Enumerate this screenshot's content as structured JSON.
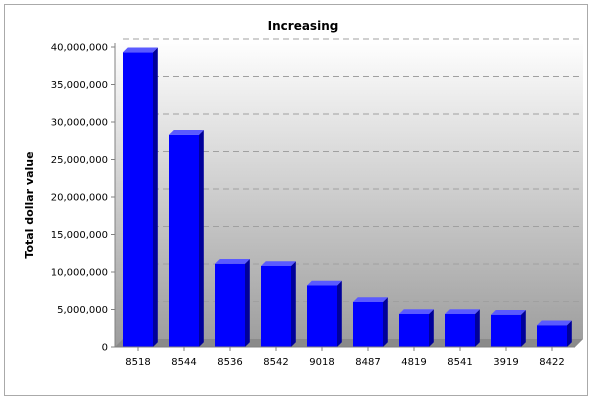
{
  "chart_data": {
    "type": "bar",
    "title": "Increasing",
    "xlabel": "",
    "ylabel": "Total dollar value",
    "categories": [
      "8518",
      "8544",
      "8536",
      "8542",
      "9018",
      "8487",
      "4819",
      "8541",
      "3919",
      "8422"
    ],
    "values": [
      39300000,
      28300000,
      11100000,
      10800000,
      8200000,
      6000000,
      4400000,
      4400000,
      4300000,
      2900000
    ],
    "ylim": [
      0,
      40000000
    ],
    "yticks": [
      0,
      5000000,
      10000000,
      15000000,
      20000000,
      25000000,
      30000000,
      35000000,
      40000000
    ],
    "ytick_labels": [
      "0",
      "5,000,000",
      "10,000,000",
      "15,000,000",
      "20,000,000",
      "25,000,000",
      "30,000,000",
      "35,000,000",
      "40,000,000"
    ],
    "grid": true,
    "legend": "none",
    "colors": {
      "bar_front": "#0000ff",
      "bar_side": "#00009a",
      "bar_top": "#5a5aff",
      "grid": "#a0a0a0"
    }
  }
}
